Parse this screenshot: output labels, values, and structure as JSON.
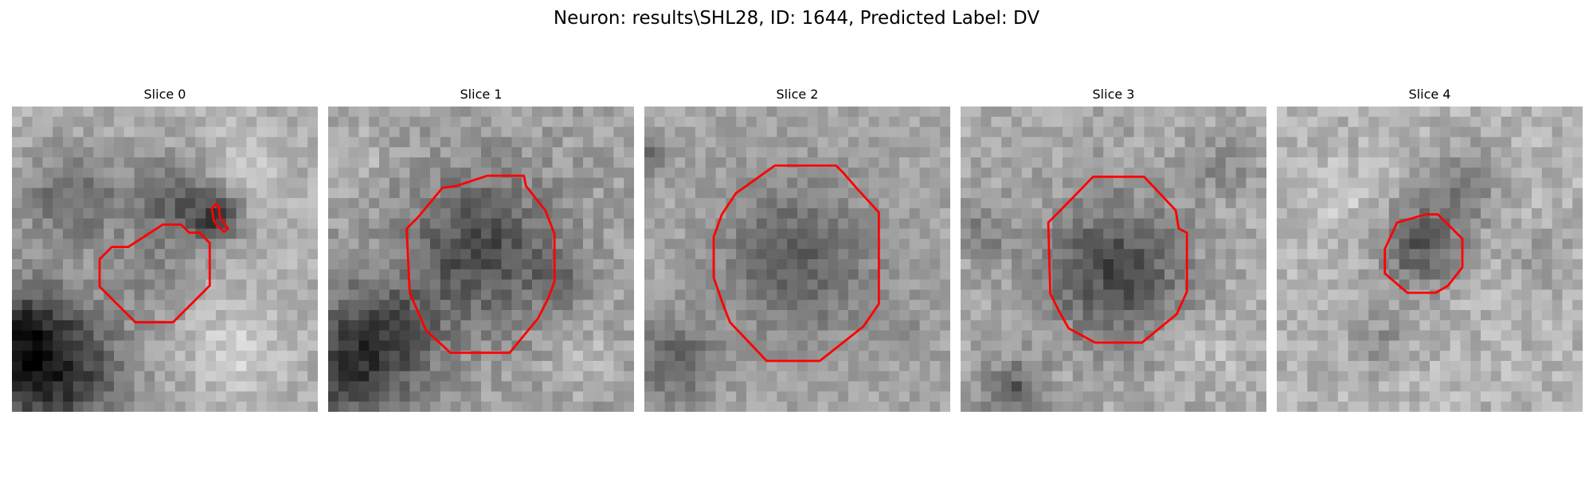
{
  "figure": {
    "title": "Neuron: results\\SHL28, ID: 1644, Predicted Label: DV",
    "contour_color": "#ff0000"
  },
  "panels": [
    {
      "label": "Slice 0"
    },
    {
      "label": "Slice 1"
    },
    {
      "label": "Slice 2"
    },
    {
      "label": "Slice 3"
    },
    {
      "label": "Slice 4"
    }
  ]
}
